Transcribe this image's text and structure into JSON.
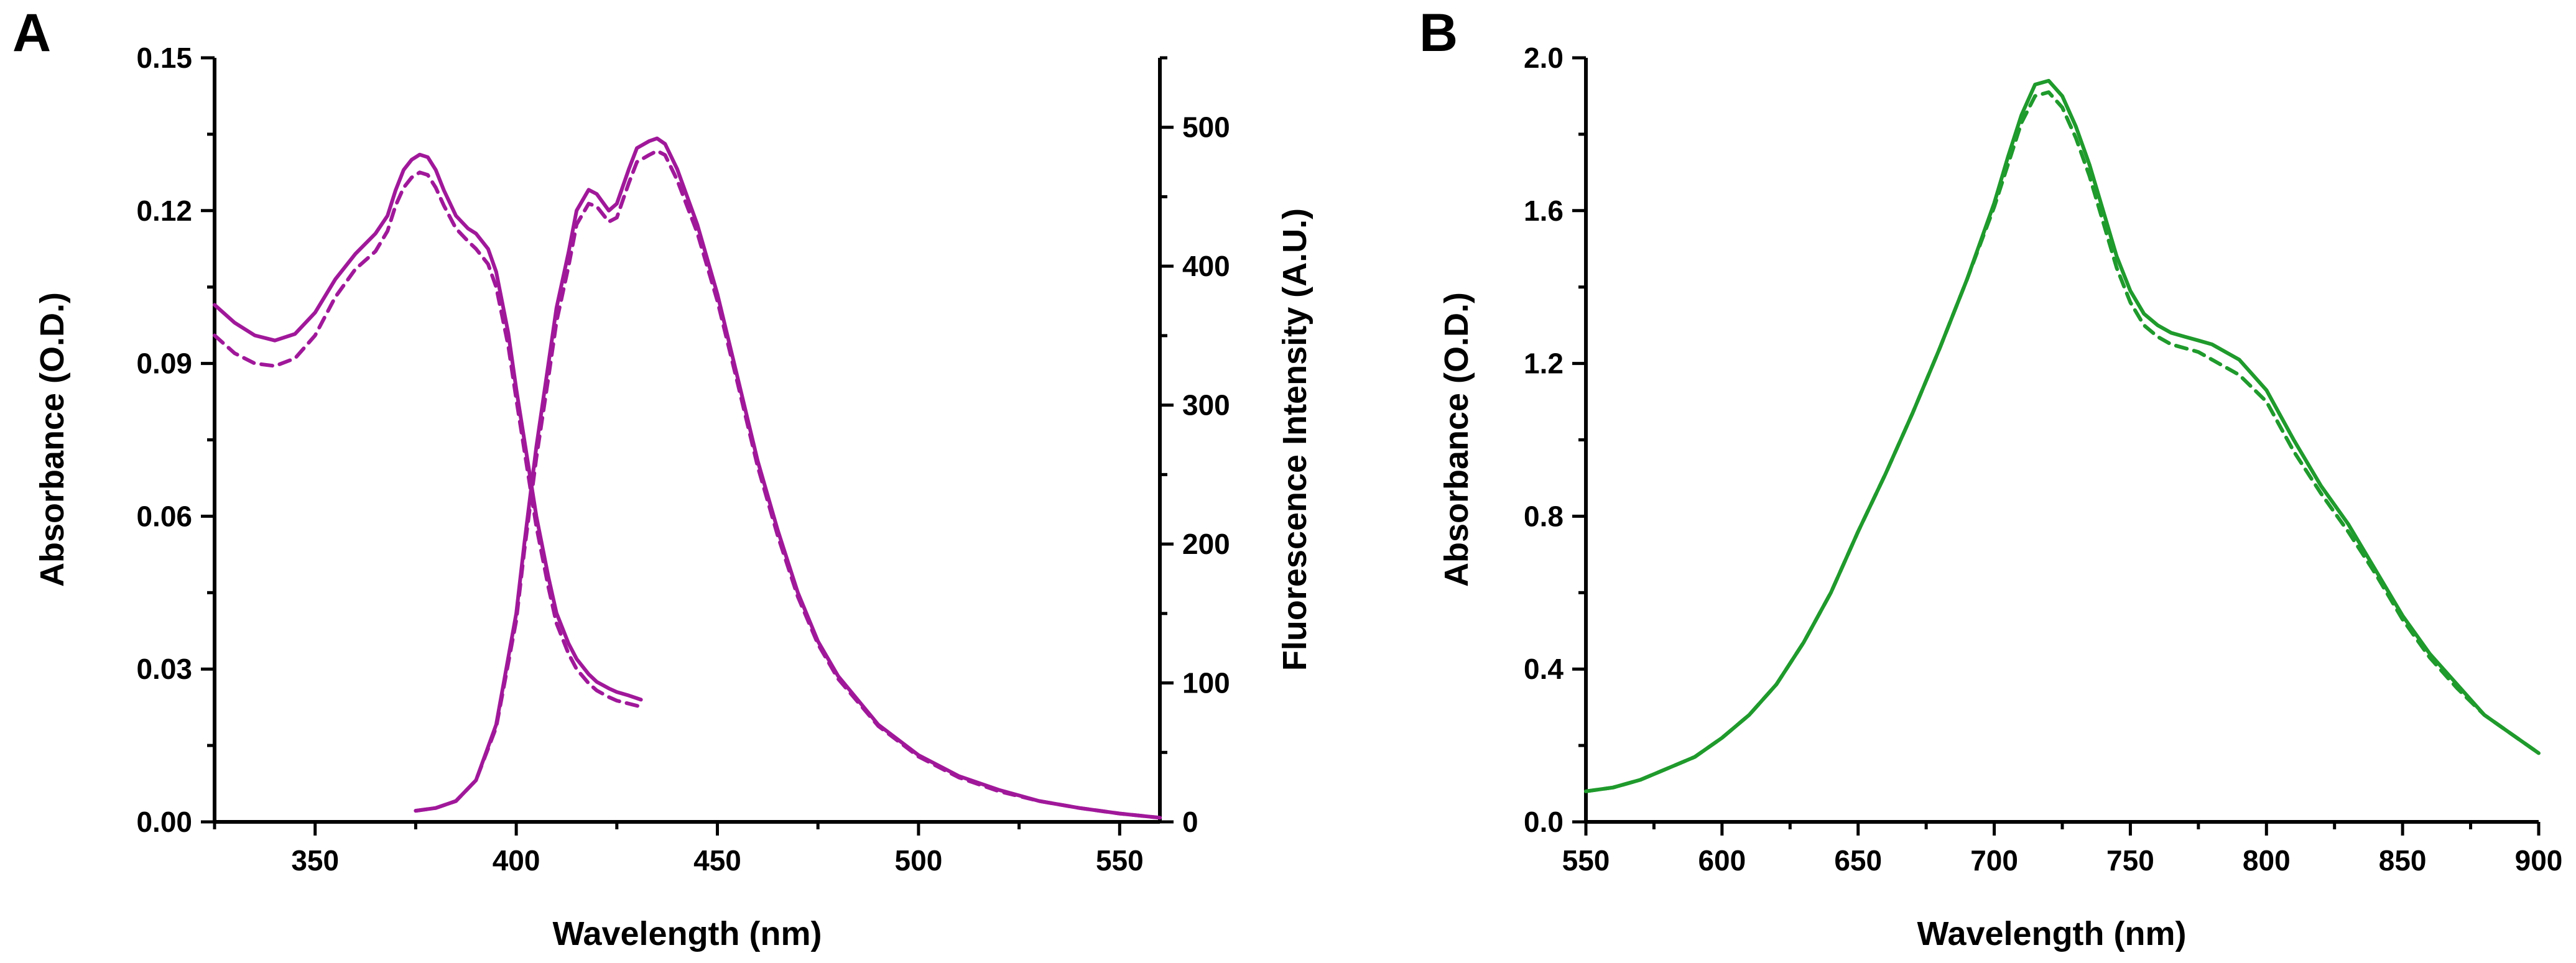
{
  "chart_data": [
    {
      "panel": "A",
      "type": "line",
      "xlabel": "Wavelength (nm)",
      "ylabel": "Absorbance (O.D.)",
      "y2label": "Fluorescence Intensity (A.U.)",
      "xlim": [
        325,
        560
      ],
      "ylim": [
        0,
        0.15
      ],
      "y2lim": [
        0,
        550
      ],
      "xticks": [
        350,
        400,
        450,
        500,
        550
      ],
      "yticks": [
        "0.00",
        "0.03",
        "0.06",
        "0.09",
        "0.12",
        "0.15"
      ],
      "y2ticks": [
        0,
        100,
        200,
        300,
        400,
        500
      ],
      "color": "#A0189A",
      "series": [
        {
          "name": "absorbance-solid",
          "axis": "left",
          "style": "solid",
          "x": [
            325,
            330,
            335,
            340,
            345,
            350,
            355,
            360,
            365,
            368,
            370,
            372,
            374,
            376,
            378,
            380,
            382,
            385,
            388,
            390,
            393,
            395,
            398,
            400,
            403,
            405,
            408,
            410,
            413,
            415,
            418,
            420,
            423,
            425,
            428,
            431
          ],
          "y": [
            0.1015,
            0.098,
            0.0955,
            0.0945,
            0.0958,
            0.1,
            0.1065,
            0.1115,
            0.1155,
            0.119,
            0.124,
            0.128,
            0.13,
            0.131,
            0.1305,
            0.128,
            0.124,
            0.119,
            0.1165,
            0.1155,
            0.1125,
            0.108,
            0.096,
            0.085,
            0.07,
            0.06,
            0.048,
            0.041,
            0.035,
            0.032,
            0.029,
            0.0275,
            0.0262,
            0.0255,
            0.0248,
            0.024
          ]
        },
        {
          "name": "absorbance-dashed",
          "axis": "left",
          "style": "dashed",
          "x": [
            325,
            330,
            335,
            340,
            345,
            350,
            355,
            360,
            365,
            368,
            370,
            372,
            374,
            376,
            378,
            380,
            382,
            385,
            388,
            390,
            393,
            395,
            398,
            400,
            403,
            405,
            408,
            410,
            413,
            415,
            418,
            420,
            423,
            425,
            428,
            431
          ],
          "y": [
            0.0955,
            0.092,
            0.09,
            0.0895,
            0.091,
            0.0955,
            0.103,
            0.1085,
            0.112,
            0.116,
            0.121,
            0.1245,
            0.1265,
            0.1275,
            0.127,
            0.1245,
            0.121,
            0.1165,
            0.114,
            0.1125,
            0.1095,
            0.105,
            0.0935,
            0.083,
            0.068,
            0.058,
            0.046,
            0.039,
            0.033,
            0.03,
            0.0272,
            0.0258,
            0.0245,
            0.0238,
            0.0232,
            0.0226
          ]
        },
        {
          "name": "fluorescence-solid",
          "axis": "right",
          "style": "solid",
          "x": [
            375,
            380,
            385,
            390,
            395,
            400,
            402,
            405,
            408,
            410,
            413,
            415,
            418,
            420,
            423,
            425,
            428,
            430,
            433,
            435,
            437,
            440,
            445,
            450,
            455,
            460,
            465,
            470,
            475,
            480,
            490,
            500,
            510,
            520,
            530,
            540,
            550,
            560
          ],
          "y": [
            8,
            10,
            15,
            30,
            70,
            150,
            200,
            270,
            330,
            370,
            410,
            440,
            455,
            452,
            440,
            445,
            470,
            485,
            490,
            492,
            488,
            470,
            430,
            380,
            320,
            260,
            210,
            165,
            130,
            105,
            70,
            48,
            33,
            23,
            15,
            10,
            6,
            3
          ]
        },
        {
          "name": "fluorescence-dashed",
          "axis": "right",
          "style": "dashed",
          "x": [
            375,
            380,
            385,
            390,
            395,
            400,
            402,
            405,
            408,
            410,
            413,
            415,
            418,
            420,
            423,
            425,
            428,
            430,
            433,
            435,
            437,
            440,
            445,
            450,
            455,
            460,
            465,
            470,
            475,
            480,
            490,
            500,
            510,
            520,
            530,
            540,
            550,
            560
          ],
          "y": [
            8,
            10,
            15,
            30,
            68,
            145,
            195,
            262,
            320,
            360,
            400,
            430,
            445,
            443,
            432,
            435,
            460,
            475,
            480,
            483,
            480,
            462,
            424,
            375,
            316,
            256,
            206,
            162,
            128,
            103,
            69,
            47,
            32,
            22,
            15,
            10,
            6,
            3
          ]
        }
      ]
    },
    {
      "panel": "B",
      "type": "line",
      "xlabel": "Wavelength (nm)",
      "ylabel": "Absorbance (O.D.)",
      "xlim": [
        550,
        900
      ],
      "ylim": [
        0,
        2.0
      ],
      "xticks": [
        550,
        600,
        650,
        700,
        750,
        800,
        850,
        900
      ],
      "yticks": [
        "0.0",
        "0.4",
        "0.8",
        "1.2",
        "1.6",
        "2.0"
      ],
      "color": "#1F9A2C",
      "series": [
        {
          "name": "absorbance-solid",
          "axis": "left",
          "style": "solid",
          "x": [
            550,
            560,
            570,
            580,
            590,
            600,
            610,
            620,
            630,
            640,
            650,
            660,
            670,
            680,
            690,
            700,
            705,
            710,
            715,
            720,
            725,
            730,
            735,
            740,
            745,
            750,
            755,
            760,
            765,
            770,
            775,
            780,
            790,
            800,
            810,
            820,
            830,
            840,
            850,
            860,
            870,
            880,
            890,
            900
          ],
          "y": [
            0.08,
            0.09,
            0.11,
            0.14,
            0.17,
            0.22,
            0.28,
            0.36,
            0.47,
            0.6,
            0.76,
            0.91,
            1.07,
            1.24,
            1.42,
            1.62,
            1.74,
            1.85,
            1.93,
            1.94,
            1.9,
            1.82,
            1.72,
            1.6,
            1.48,
            1.39,
            1.33,
            1.3,
            1.28,
            1.27,
            1.26,
            1.25,
            1.21,
            1.13,
            1.0,
            0.88,
            0.78,
            0.66,
            0.54,
            0.44,
            0.36,
            0.28,
            0.23,
            0.18
          ]
        },
        {
          "name": "absorbance-dashed",
          "axis": "left",
          "style": "dashed",
          "x": [
            550,
            560,
            570,
            580,
            590,
            600,
            610,
            620,
            630,
            640,
            650,
            660,
            670,
            680,
            690,
            700,
            705,
            710,
            715,
            720,
            725,
            730,
            735,
            740,
            745,
            750,
            755,
            760,
            765,
            770,
            775,
            780,
            790,
            800,
            810,
            820,
            830,
            840,
            850,
            860,
            870,
            880,
            890,
            900
          ],
          "y": [
            0.08,
            0.09,
            0.11,
            0.14,
            0.17,
            0.22,
            0.28,
            0.36,
            0.47,
            0.6,
            0.76,
            0.91,
            1.07,
            1.24,
            1.42,
            1.61,
            1.72,
            1.83,
            1.9,
            1.91,
            1.87,
            1.79,
            1.69,
            1.57,
            1.45,
            1.36,
            1.3,
            1.27,
            1.25,
            1.24,
            1.23,
            1.21,
            1.17,
            1.1,
            0.97,
            0.86,
            0.76,
            0.65,
            0.53,
            0.43,
            0.35,
            0.28,
            0.23,
            0.18
          ]
        }
      ]
    }
  ]
}
